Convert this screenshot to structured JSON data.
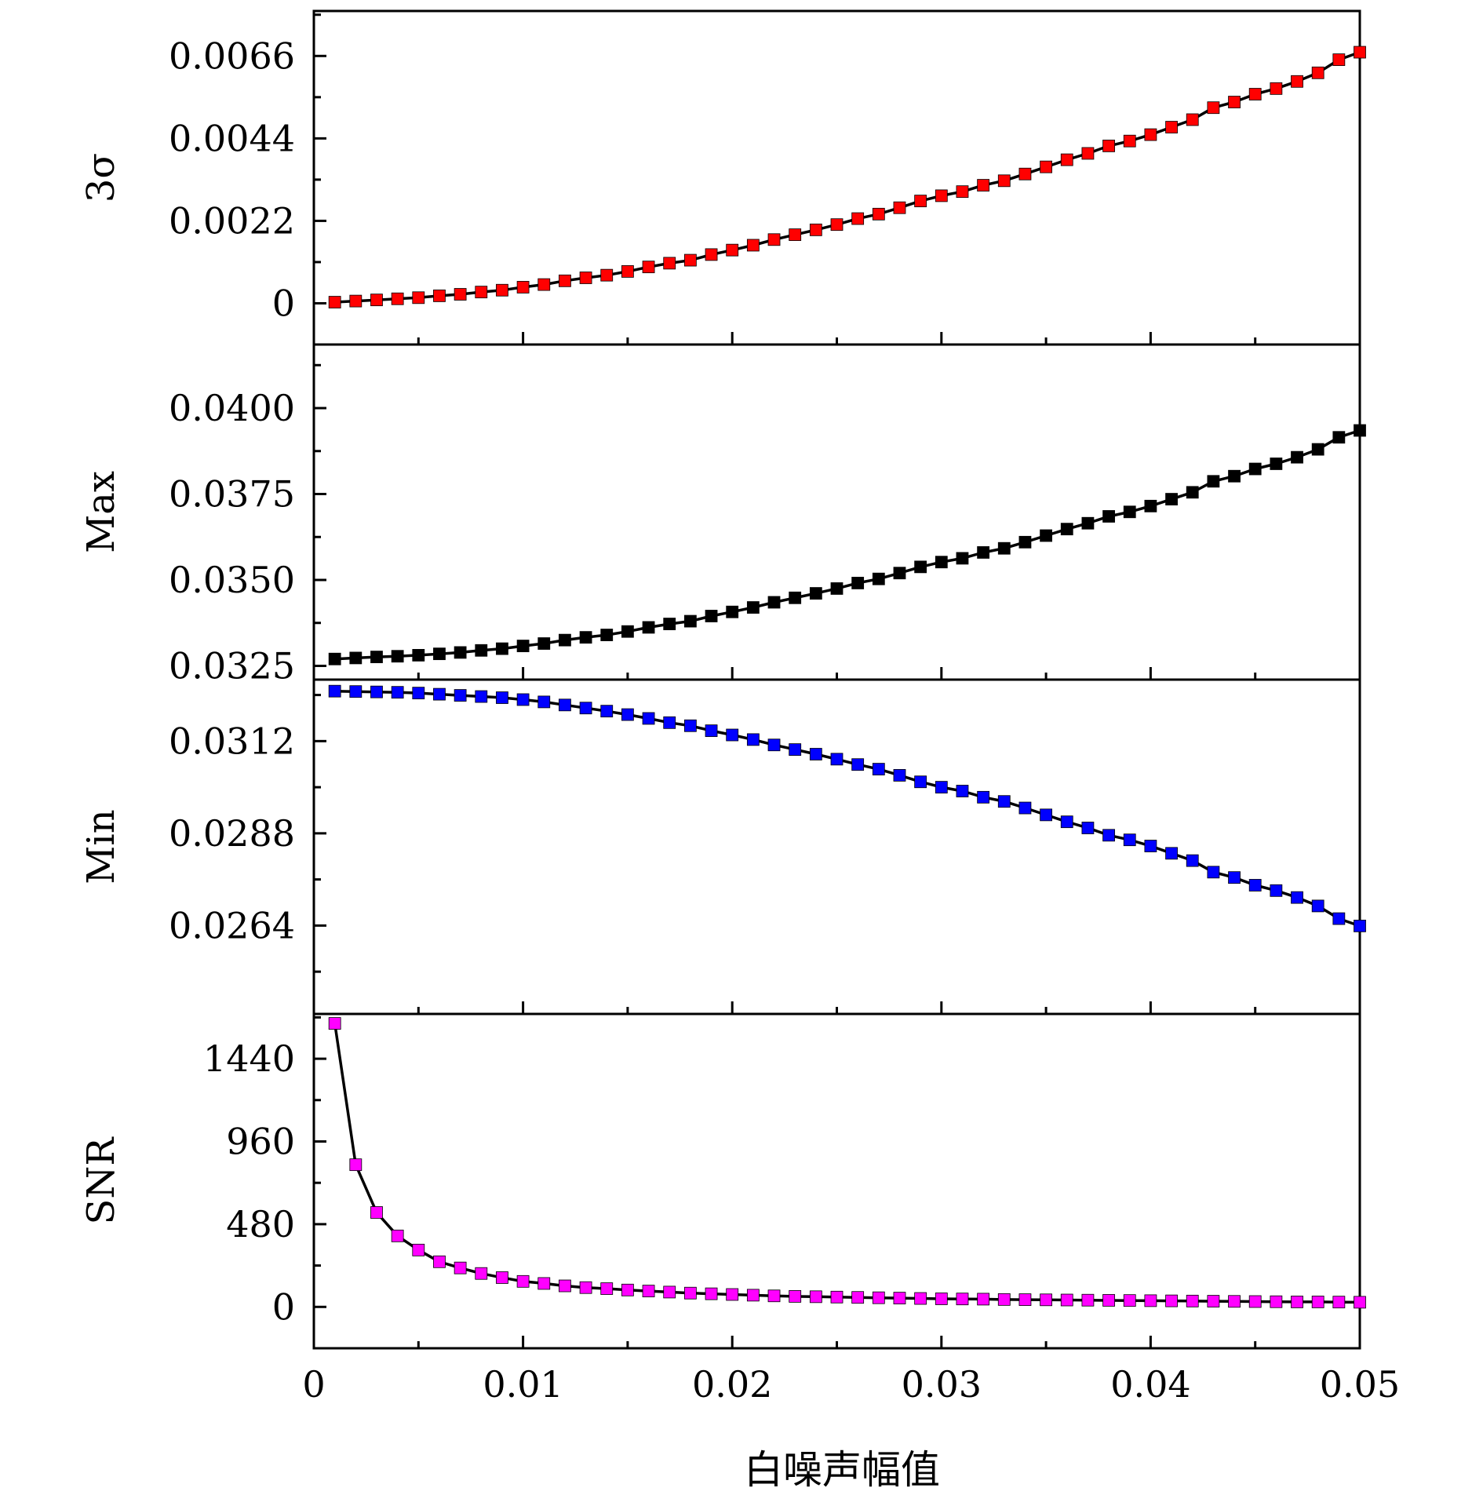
{
  "chart_data": {
    "type": "line",
    "xlabel": "白噪声幅值",
    "xlim": [
      0,
      0.05
    ],
    "xticks": [
      0,
      0.01,
      0.02,
      0.03,
      0.04,
      0.05
    ],
    "xtick_labels": [
      "0",
      "0.01",
      "0.02",
      "0.03",
      "0.04",
      "0.05"
    ],
    "x": [
      0.001,
      0.002,
      0.003,
      0.004,
      0.005,
      0.006,
      0.007,
      0.008,
      0.009,
      0.01,
      0.011,
      0.012,
      0.013,
      0.014,
      0.015,
      0.016,
      0.017,
      0.018,
      0.019,
      0.02,
      0.021,
      0.022,
      0.023,
      0.024,
      0.025,
      0.026,
      0.027,
      0.028,
      0.029,
      0.03,
      0.031,
      0.032,
      0.033,
      0.034,
      0.035,
      0.036,
      0.037,
      0.038,
      0.039,
      0.04,
      0.041,
      0.042,
      0.043,
      0.044,
      0.045,
      0.046,
      0.047,
      0.048,
      0.049,
      0.05
    ],
    "panels": [
      {
        "ylabel": "3σ",
        "ylim": [
          -0.0011,
          0.0078
        ],
        "yticks": [
          0,
          0.0022,
          0.0044,
          0.0066
        ],
        "ytick_labels": [
          "0",
          "0.0022",
          "0.0044",
          "0.0066"
        ],
        "color": "#ff0000",
        "values": [
          3e-05,
          6e-05,
          9e-05,
          0.00012,
          0.00015,
          0.0002,
          0.00024,
          0.0003,
          0.00035,
          0.00043,
          0.0005,
          0.0006,
          0.00068,
          0.00075,
          0.00085,
          0.00097,
          0.00107,
          0.00115,
          0.0013,
          0.00142,
          0.00155,
          0.0017,
          0.00183,
          0.00196,
          0.0021,
          0.00226,
          0.00238,
          0.00255,
          0.00273,
          0.00287,
          0.00298,
          0.00315,
          0.00327,
          0.00345,
          0.00364,
          0.00383,
          0.004,
          0.0042,
          0.00433,
          0.0045,
          0.0047,
          0.0049,
          0.00522,
          0.00537,
          0.00558,
          0.00573,
          0.00592,
          0.00615,
          0.0065,
          0.0067
        ]
      },
      {
        "ylabel": "Max",
        "ylim": [
          0.0321,
          0.04185
        ],
        "yticks": [
          0.0325,
          0.035,
          0.0375,
          0.04
        ],
        "ytick_labels": [
          "0.0325",
          "0.0350",
          "0.0375",
          "0.0400"
        ],
        "color": "#000000",
        "values": [
          0.0327,
          0.03273,
          0.03276,
          0.03278,
          0.03281,
          0.03285,
          0.03289,
          0.03295,
          0.033,
          0.03308,
          0.03315,
          0.03325,
          0.03333,
          0.0334,
          0.0335,
          0.03362,
          0.03372,
          0.0338,
          0.03395,
          0.03407,
          0.0342,
          0.03435,
          0.03448,
          0.03461,
          0.03475,
          0.03491,
          0.03503,
          0.0352,
          0.03538,
          0.03552,
          0.03563,
          0.0358,
          0.03592,
          0.0361,
          0.03629,
          0.03648,
          0.03665,
          0.03685,
          0.03698,
          0.03715,
          0.03735,
          0.03755,
          0.03787,
          0.03802,
          0.03823,
          0.03838,
          0.03857,
          0.0388,
          0.03915,
          0.03935
        ]
      },
      {
        "ylabel": "Min",
        "ylim": [
          0.0241,
          0.0328
        ],
        "yticks": [
          0.0264,
          0.0288,
          0.0312
        ],
        "ytick_labels": [
          "0.0264",
          "0.0288",
          "0.0312"
        ],
        "color": "#0000ff",
        "values": [
          0.0325,
          0.03249,
          0.03248,
          0.03247,
          0.03245,
          0.03242,
          0.03239,
          0.03236,
          0.03233,
          0.03228,
          0.03222,
          0.03214,
          0.03206,
          0.03198,
          0.03189,
          0.03179,
          0.03168,
          0.0316,
          0.03147,
          0.03136,
          0.03124,
          0.0311,
          0.03098,
          0.03086,
          0.03073,
          0.03059,
          0.03047,
          0.03031,
          0.03014,
          0.03,
          0.0299,
          0.02974,
          0.02963,
          0.02946,
          0.02928,
          0.0291,
          0.02894,
          0.02875,
          0.02863,
          0.02847,
          0.02828,
          0.02809,
          0.02779,
          0.02765,
          0.02745,
          0.02731,
          0.02713,
          0.02691,
          0.02658,
          0.02639
        ]
      },
      {
        "ylabel": "SNR",
        "ylim": [
          -240,
          1700
        ],
        "yticks": [
          0,
          480,
          960,
          1440
        ],
        "ytick_labels": [
          "0",
          "480",
          "960",
          "1440"
        ],
        "color": "#ff00ff",
        "values": [
          1645,
          825,
          548,
          412,
          330,
          262,
          226,
          194,
          170,
          148,
          136,
          122,
          112,
          106,
          98,
          92,
          86,
          80,
          76,
          72,
          68,
          64,
          61,
          59,
          57,
          55,
          53,
          51,
          49,
          47,
          46,
          45,
          43,
          42,
          41,
          40,
          39,
          38,
          37,
          36,
          35,
          34,
          33,
          32,
          31,
          30,
          29,
          29,
          28,
          27
        ]
      }
    ]
  }
}
